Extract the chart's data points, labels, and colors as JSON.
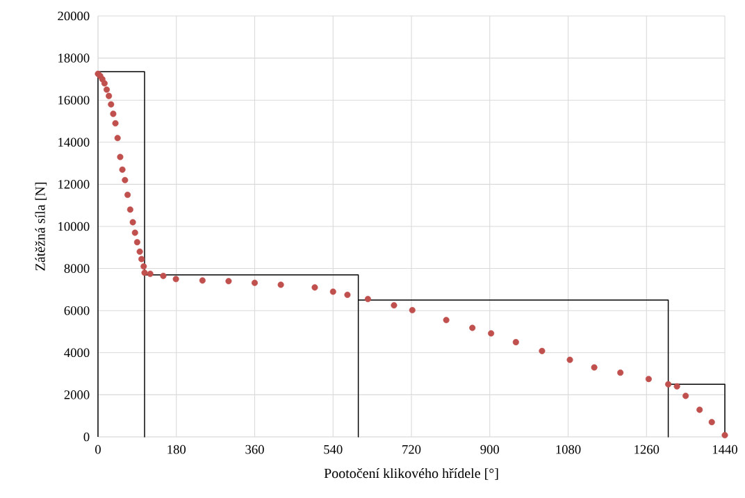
{
  "chart_data": {
    "type": "scatter",
    "xlabel": "Pootočení klikového hřídele [°]",
    "ylabel": "Zátěžná síla [N]",
    "xlim": [
      0,
      1440
    ],
    "xticks": [
      0,
      180,
      360,
      540,
      720,
      900,
      1080,
      1260,
      1440
    ],
    "ylim": [
      0,
      20000
    ],
    "yticks": [
      0,
      2000,
      4000,
      6000,
      8000,
      10000,
      12000,
      14000,
      16000,
      18000,
      20000
    ],
    "grid": true,
    "series": [
      {
        "marker": "circle",
        "color": "#c0504d",
        "x": [
          0,
          5,
          10,
          15,
          20,
          25,
          30,
          35,
          40,
          45,
          51,
          56,
          62,
          68,
          74,
          80,
          85,
          90,
          96,
          100,
          105,
          107,
          120,
          150,
          179,
          240,
          300,
          360,
          420,
          498,
          540,
          573,
          620,
          680,
          722,
          800,
          860,
          903,
          960,
          1020,
          1084,
          1140,
          1200,
          1265,
          1310,
          1330,
          1350,
          1382,
          1410,
          1440
        ],
        "values": [
          17250,
          17150,
          17000,
          16800,
          16500,
          16200,
          15800,
          15350,
          14900,
          14200,
          13300,
          12700,
          12200,
          11500,
          10800,
          10200,
          9700,
          9250,
          8800,
          8450,
          8100,
          7800,
          7750,
          7650,
          7500,
          7430,
          7400,
          7320,
          7230,
          7100,
          6900,
          6750,
          6550,
          6250,
          6020,
          5550,
          5180,
          4920,
          4500,
          4080,
          3660,
          3300,
          3050,
          2750,
          2500,
          2400,
          1950,
          1290,
          700,
          80
        ]
      },
      {
        "type": "line",
        "marker": "none",
        "line_style": "solid",
        "color": "#000000",
        "x": [
          0,
          0,
          107,
          107,
          107,
          598,
          598,
          598,
          1310,
          1310,
          1310,
          1440,
          1440
        ],
        "values": [
          0,
          17350,
          17350,
          0,
          7700,
          7700,
          0,
          6500,
          6500,
          0,
          2500,
          2500,
          0
        ]
      }
    ]
  }
}
